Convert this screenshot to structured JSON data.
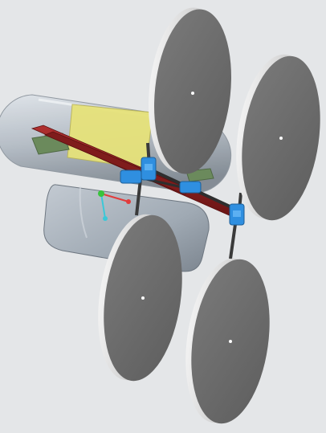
{
  "scene": {
    "background_color": "#e4e6e8",
    "parts": [
      {
        "name": "cylindrical-tank",
        "color": "#b8c0c8",
        "material": "translucent"
      },
      {
        "name": "yellow-panel",
        "color": "#e6e27a"
      },
      {
        "name": "rectangular-housing",
        "color": "#a7b0ba"
      },
      {
        "name": "wheel",
        "count": 4,
        "face_color": "#6e6e6e",
        "rim_color": "#d6d6d6"
      },
      {
        "name": "diagonal-strut",
        "count": 2,
        "color": "#8e2222"
      },
      {
        "name": "axle-bracket",
        "count": 4,
        "color": "#2f8fe0"
      },
      {
        "name": "axle-rod",
        "count": 4,
        "color": "#3a3a3a"
      },
      {
        "name": "green-component",
        "count": 2,
        "color": "#6b8a5c"
      }
    ],
    "triad": {
      "x_axis_color": "#e23b3b",
      "y_axis_color": "#3bc8d8",
      "z_axis_color": "#38c43c"
    }
  }
}
